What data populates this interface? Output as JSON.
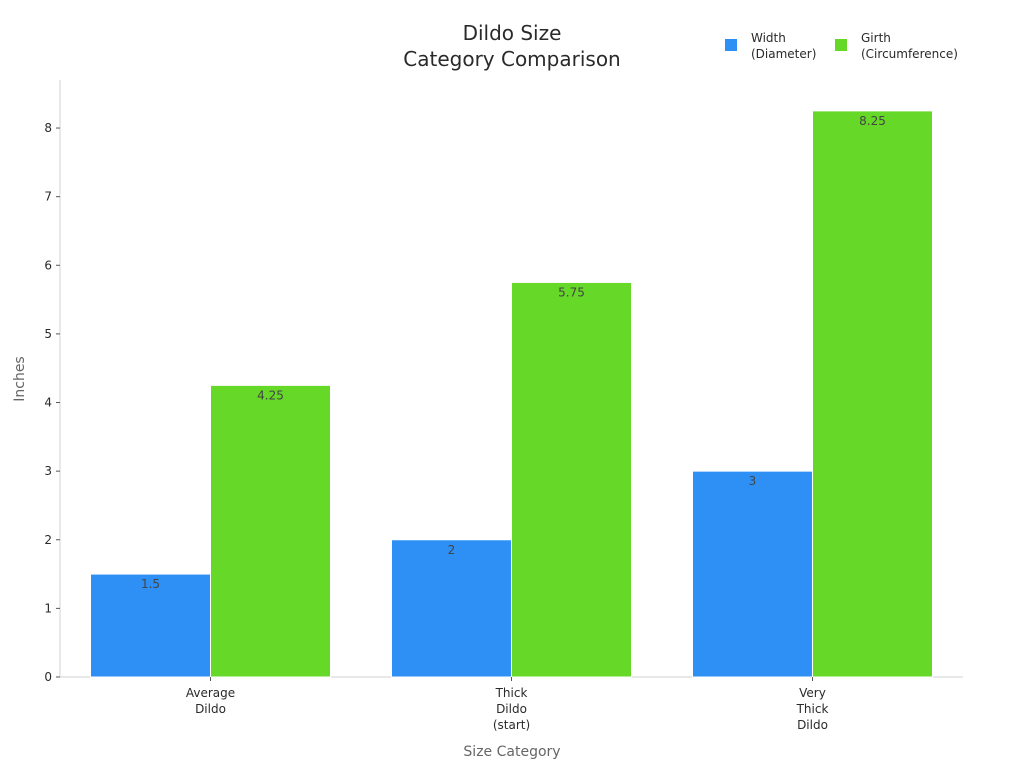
{
  "chart_data": {
    "type": "bar",
    "title_lines": [
      "Dildo Size",
      "Category Comparison"
    ],
    "xlabel": "Size Category",
    "ylabel": "Inches",
    "categories": [
      [
        "Average",
        "Dildo"
      ],
      [
        "Thick",
        "Dildo",
        "(start)"
      ],
      [
        "Very",
        "Thick",
        "Dildo"
      ]
    ],
    "series": [
      {
        "name_lines": [
          "Width",
          "(Diameter)"
        ],
        "color": "#2e8ff5",
        "values": [
          1.5,
          2,
          3
        ],
        "labels": [
          "1.5",
          "2",
          "3"
        ]
      },
      {
        "name_lines": [
          "Girth",
          "(Circumference)"
        ],
        "color": "#66d928",
        "values": [
          4.25,
          5.75,
          8.25
        ],
        "labels": [
          "4.25",
          "5.75",
          "8.25"
        ]
      }
    ],
    "yticks": [
      0,
      1,
      2,
      3,
      4,
      5,
      6,
      7,
      8
    ],
    "ylim": [
      0,
      8.7
    ],
    "legend_position": "top-right",
    "grid": false
  }
}
